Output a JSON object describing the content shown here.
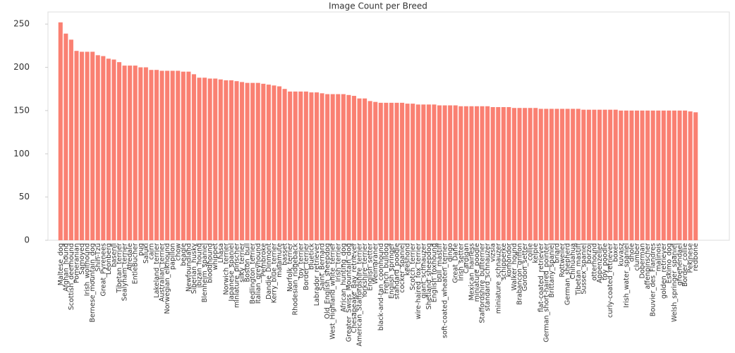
{
  "chart_data": {
    "type": "bar",
    "title": "Image Count per Breed",
    "color": "#fa8072",
    "categories": [
      "Maltese_dog",
      "Afghan_hound",
      "Scottish_deerhound",
      "Pomeranian",
      "Samoyed",
      "Irish_wolfhound",
      "Bernese_mountain_dog",
      "Shih-Tzu",
      "Great_Pyrenees",
      "Leonberg",
      "basenji",
      "Tibetan_terrier",
      "Sealyham_terrier",
      "Airedale",
      "EntleBucher",
      "pug",
      "Saluki",
      "cairn",
      "Lakeland_terrier",
      "Australian_terrier",
      "Norwegian_elkhound",
      "papillon",
      "chow",
      "beagle",
      "Newfoundland",
      "Siberian_husky",
      "ibizan_hound",
      "Blenheim_spaniel",
      "bloodhound",
      "whippet",
      "Lhasa",
      "Norwich_terrier",
      "Japanese_spaniel",
      "miniature_pinscher",
      "silky_terrier",
      "Boston_bull",
      "Bedlington_terrier",
      "Italian_greyhound",
      "Pembroke",
      "Dandie_Dinmont",
      "Kerry_blue_terrier",
      "malamute",
      "basset",
      "Norfolk_terrier",
      "Rhodesian_ridgeback",
      "toy_terrier",
      "Border_terrier",
      "bluetick",
      "Labrador_retriever",
      "Saint_Bernard",
      "Old_English_sheepdog",
      "West_Highland_white_terrier",
      "Irish_terrier",
      "African_hunting_dog",
      "Greater_Swiss_Mountain_dog",
      "Chesapeake_Bay_retriever",
      "American_Staffordshire_terrier",
      "Yorkshire_terrier",
      "English_setter",
      "Weimaraner",
      "black-and-tan_coonhound",
      "French_bulldog",
      "English_springer",
      "standard_poodle",
      "cocker_spaniel",
      "keeshond",
      "Scotch_terrier",
      "wire-haired_fox_terrier",
      "giant_schnauzer",
      "Shetland_sheepdog",
      "English_foxhound",
      "bull_mastiff",
      "soft-coated_wheaten_terrier",
      "dingo",
      "Great_Dane",
      "Irish_setter",
      "Cardigan",
      "Mexican_hairless",
      "miniature_poodle",
      "Staffordshire_bullterrier",
      "standard_schnauzer",
      "vizsla",
      "miniature_schnauzer",
      "schipperke",
      "komondor",
      "Walker_hound",
      "Brabancon_griffon",
      "Gordon_setter",
      "collie",
      "kelpie",
      "flat-coated_retriever",
      "German_short-haired_pointer",
      "Brittany_spaniel",
      "briard",
      "Rottweiler",
      "German_shepherd",
      "Chihuahua",
      "Tibetan_mastiff",
      "Sussex_spaniel",
      "borzoi",
      "otterhound",
      "Appenzeller",
      "toy_poodle",
      "curly-coated_retriever",
      "boxer",
      "kuvasz",
      "Irish_water_spaniel",
      "dhole",
      "clumber",
      "Doberman",
      "affenpinscher",
      "Bouvier_des_Flandres",
      "malinois",
      "golden_retriever",
      "Eskimo_dog",
      "Welsh_springer_spaniel",
      "groenendael",
      "Border_collie",
      "Pekinese",
      "redbone"
    ],
    "values": [
      252,
      239,
      232,
      219,
      218,
      218,
      218,
      214,
      213,
      210,
      209,
      206,
      202,
      202,
      202,
      200,
      200,
      197,
      197,
      196,
      196,
      196,
      196,
      195,
      195,
      192,
      188,
      188,
      187,
      187,
      186,
      185,
      185,
      184,
      183,
      182,
      182,
      182,
      181,
      180,
      179,
      178,
      175,
      172,
      172,
      172,
      172,
      171,
      171,
      170,
      169,
      169,
      169,
      169,
      168,
      167,
      164,
      164,
      161,
      160,
      159,
      159,
      159,
      159,
      159,
      158,
      158,
      157,
      157,
      157,
      157,
      156,
      156,
      156,
      156,
      155,
      155,
      155,
      155,
      155,
      155,
      154,
      154,
      154,
      154,
      153,
      153,
      153,
      153,
      153,
      152,
      152,
      152,
      152,
      152,
      152,
      152,
      152,
      151,
      151,
      151,
      151,
      151,
      151,
      151,
      150,
      150,
      150,
      150,
      150,
      150,
      150,
      150,
      150,
      150,
      150,
      150,
      150,
      149,
      148
    ],
    "ylim": [
      0,
      264
    ],
    "yticks": [
      0,
      50,
      100,
      150,
      200,
      250
    ],
    "grid": false
  }
}
